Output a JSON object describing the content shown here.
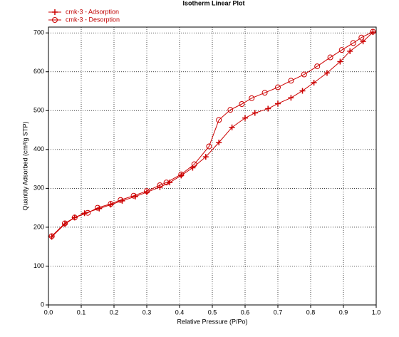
{
  "chart_data": {
    "type": "line",
    "title": "Isotherm Linear Plot",
    "x_label": "Relative Pressure (P/Po)",
    "y_label": "Quantity Adsorbed (cm³/g STP)",
    "xlim": [
      0,
      1
    ],
    "ylim": [
      0,
      715
    ],
    "xticks": [
      {
        "value": 0,
        "label": "0.0"
      },
      0.1,
      0.2,
      0.3,
      0.4,
      0.5,
      0.6,
      0.7,
      0.8,
      0.9,
      {
        "value": 1,
        "label": "1.0"
      }
    ],
    "yticks": [
      0,
      100,
      200,
      300,
      400,
      500,
      600,
      700
    ],
    "grid": true,
    "legend": "top-left",
    "series": [
      {
        "name": "cmk-3 - Adsorption",
        "color": "#cc0000",
        "marker": "plus",
        "x": [
          0.01,
          0.05,
          0.08,
          0.11,
          0.155,
          0.19,
          0.225,
          0.265,
          0.3,
          0.34,
          0.37,
          0.405,
          0.44,
          0.48,
          0.52,
          0.56,
          0.6,
          0.63,
          0.67,
          0.7,
          0.74,
          0.775,
          0.81,
          0.85,
          0.89,
          0.92,
          0.96,
          0.99
        ],
        "values": [
          175,
          208,
          225,
          236,
          248,
          258,
          268,
          279,
          290,
          303,
          315,
          333,
          353,
          381,
          418,
          457,
          481,
          494,
          505,
          518,
          533,
          551,
          572,
          597,
          626,
          653,
          678,
          702
        ]
      },
      {
        "name": "cmk-3 - Desorption",
        "color": "#cc0000",
        "marker": "circle",
        "x": [
          0.99,
          0.955,
          0.93,
          0.895,
          0.86,
          0.82,
          0.78,
          0.74,
          0.7,
          0.66,
          0.62,
          0.59,
          0.555,
          0.52,
          0.49,
          0.445,
          0.405,
          0.36,
          0.34,
          0.3,
          0.26,
          0.22,
          0.19,
          0.15,
          0.12,
          0.08,
          0.05,
          0.01
        ],
        "values": [
          703,
          688,
          674,
          656,
          637,
          614,
          593,
          577,
          560,
          546,
          532,
          517,
          502,
          476,
          408,
          362,
          336,
          315,
          308,
          293,
          281,
          270,
          260,
          250,
          237,
          225,
          210,
          177
        ]
      }
    ]
  }
}
